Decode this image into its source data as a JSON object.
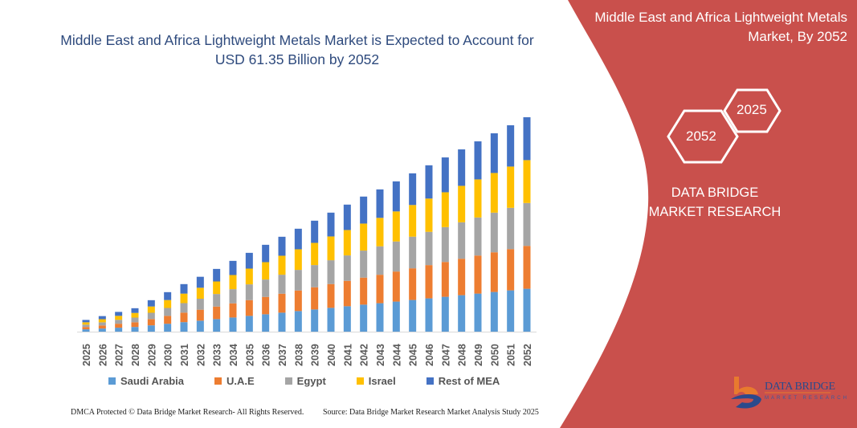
{
  "header": {
    "title": "Middle East and Africa Lightweight Metals Market is Expected to Account for USD 61.35 Billion by 2052"
  },
  "side_panel": {
    "title": "Middle East and Africa Lightweight Metals Market, By 2052",
    "hex_left": "2052",
    "hex_right": "2025",
    "brand_text": "DATA BRIDGE MARKET RESEARCH",
    "logo_text": "DATA BRIDGE",
    "logo_subtext": "MARKET RESEARCH",
    "panel_color": "#c9504c"
  },
  "footer": {
    "left": "DMCA Protected © Data Bridge Market Research-  All Rights Reserved.",
    "right": "Source: Data Bridge Market Research  Market Analysis Study 2025"
  },
  "chart_data": {
    "type": "bar",
    "stacked": true,
    "title": "",
    "xlabel": "",
    "ylabel": "",
    "grid": false,
    "legend_position": "bottom",
    "categories": [
      "2025",
      "2026",
      "2027",
      "2028",
      "2029",
      "2030",
      "2031",
      "2032",
      "2033",
      "2034",
      "2035",
      "2036",
      "2037",
      "2038",
      "2039",
      "2040",
      "2041",
      "2042",
      "2043",
      "2044",
      "2045",
      "2046",
      "2047",
      "2048",
      "2049",
      "2050",
      "2051",
      "2052"
    ],
    "series": [
      {
        "name": "Saudi Arabia",
        "color": "#5b9bd5",
        "values": [
          0.67,
          0.89,
          1.13,
          1.34,
          1.8,
          2.26,
          2.72,
          3.14,
          3.59,
          4.05,
          4.51,
          4.97,
          5.43,
          5.89,
          6.35,
          6.81,
          7.27,
          7.73,
          8.14,
          8.6,
          9.06,
          9.52,
          9.97,
          10.43,
          10.89,
          11.35,
          11.81,
          12.27
        ]
      },
      {
        "name": "U.A.E",
        "color": "#ed7d31",
        "values": [
          0.67,
          0.89,
          1.13,
          1.34,
          1.8,
          2.26,
          2.72,
          3.14,
          3.59,
          4.05,
          4.51,
          4.97,
          5.43,
          5.89,
          6.35,
          6.81,
          7.27,
          7.73,
          8.14,
          8.6,
          9.06,
          9.52,
          9.97,
          10.43,
          10.89,
          11.35,
          11.81,
          12.27
        ]
      },
      {
        "name": "Egypt",
        "color": "#a5a5a5",
        "values": [
          0.67,
          0.89,
          1.13,
          1.34,
          1.8,
          2.26,
          2.72,
          3.14,
          3.59,
          4.05,
          4.51,
          4.97,
          5.43,
          5.89,
          6.35,
          6.81,
          7.27,
          7.73,
          8.14,
          8.6,
          9.06,
          9.52,
          9.97,
          10.43,
          10.89,
          11.35,
          11.81,
          12.27
        ]
      },
      {
        "name": "Israel",
        "color": "#ffc000",
        "values": [
          0.67,
          0.89,
          1.13,
          1.34,
          1.8,
          2.26,
          2.72,
          3.14,
          3.59,
          4.05,
          4.51,
          4.97,
          5.43,
          5.89,
          6.35,
          6.81,
          7.27,
          7.73,
          8.14,
          8.6,
          9.06,
          9.52,
          9.97,
          10.43,
          10.89,
          11.35,
          11.81,
          12.27
        ]
      },
      {
        "name": "Rest of MEA",
        "color": "#4472c4",
        "values": [
          0.67,
          0.89,
          1.13,
          1.34,
          1.8,
          2.26,
          2.72,
          3.14,
          3.59,
          4.05,
          4.51,
          4.97,
          5.43,
          5.89,
          6.35,
          6.81,
          7.27,
          7.73,
          8.14,
          8.6,
          9.06,
          9.52,
          9.97,
          10.43,
          10.89,
          11.35,
          11.81,
          12.27
        ]
      }
    ]
  }
}
